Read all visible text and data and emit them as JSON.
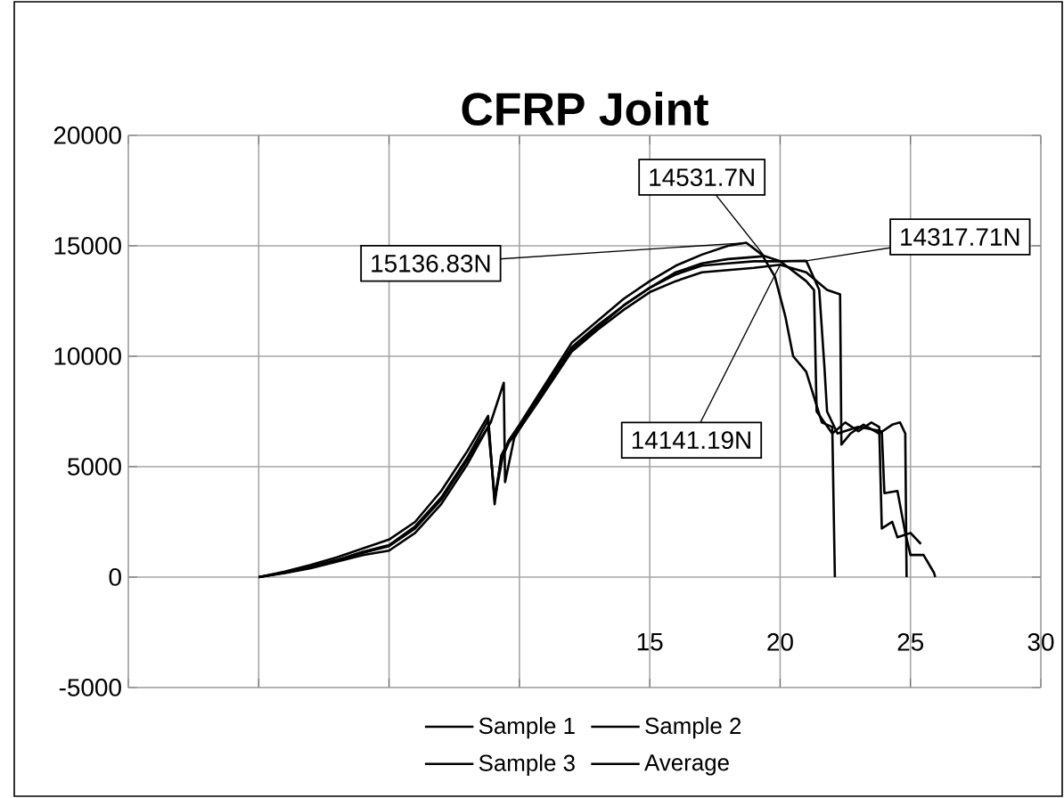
{
  "chart_data": {
    "type": "line",
    "title": "CFRP Joint",
    "xlim": [
      -5,
      30
    ],
    "ylim": [
      -5000,
      20000
    ],
    "xticks": [
      {
        "value": -5,
        "label": null
      },
      {
        "value": 0,
        "label": null
      },
      {
        "value": 5,
        "label": null
      },
      {
        "value": 10,
        "label": null
      },
      15,
      20,
      25,
      30
    ],
    "yticks": [
      -5000,
      0,
      5000,
      10000,
      15000,
      20000
    ],
    "grid": true,
    "legend": "bottom",
    "marker": "none",
    "line_style": "solid",
    "series": [
      {
        "name": "Sample 1",
        "color": "#000000",
        "x": [
          0,
          1,
          2,
          3,
          4,
          5,
          6,
          7,
          8,
          8.8,
          9.05,
          9.3,
          9.6,
          10,
          10.7,
          12,
          13,
          14,
          15,
          16,
          17,
          18,
          18.7,
          19.3,
          19.8,
          20.2,
          20.5,
          21.0,
          21.6,
          22.0,
          22.1
        ],
        "values": [
          0,
          250,
          550,
          900,
          1300,
          1700,
          2500,
          3900,
          5700,
          7300,
          3300,
          5500,
          6200,
          6900,
          8200,
          10600,
          11600,
          12600,
          13400,
          14100,
          14600,
          15000,
          15136.83,
          14600,
          13600,
          11800,
          10000,
          9300,
          7000,
          6800,
          0
        ]
      },
      {
        "name": "Sample 2",
        "color": "#000000",
        "x": [
          0,
          1,
          2,
          3,
          4,
          5,
          6,
          7,
          8,
          8.9,
          9.4,
          9.45,
          9.8,
          10,
          10.7,
          12,
          13,
          14,
          15,
          16,
          17,
          18,
          19.4,
          20,
          21,
          21.3,
          21.4,
          22,
          22.5,
          23,
          23.5,
          23.8,
          23.9,
          24.3,
          24.5,
          25,
          25.4
        ],
        "values": [
          0,
          200,
          450,
          750,
          1100,
          1400,
          2200,
          3500,
          5300,
          7000,
          8800,
          4300,
          6300,
          6700,
          8000,
          10300,
          11300,
          12300,
          13100,
          13800,
          14200,
          14400,
          14531.7,
          14300,
          13400,
          13000,
          7500,
          6500,
          7000,
          6600,
          7000,
          6800,
          2200,
          2500,
          1800,
          2000,
          1500
        ]
      },
      {
        "name": "Sample 3",
        "color": "#000000",
        "x": [
          0,
          1,
          2,
          3,
          4,
          5,
          6,
          7,
          8,
          8.8,
          9.05,
          9.3,
          9.6,
          10,
          10.7,
          12,
          13,
          14,
          15,
          16,
          17,
          18,
          19,
          20,
          21,
          21.8,
          22.3,
          22.35,
          22.7,
          23.2,
          23.8,
          24.3,
          24.6,
          24.8,
          24.85
        ],
        "values": [
          0,
          180,
          400,
          700,
          1000,
          1200,
          2000,
          3300,
          5100,
          6800,
          3600,
          5300,
          6100,
          6700,
          7900,
          10200,
          11200,
          12100,
          12900,
          13400,
          13800,
          13900,
          14000,
          14141.19,
          13800,
          13000,
          12800,
          6000,
          6500,
          6900,
          6500,
          6900,
          7000,
          6500,
          0
        ]
      },
      {
        "name": "Average",
        "color": "#000000",
        "x": [
          0,
          1,
          2,
          3,
          4,
          5,
          6,
          7,
          8,
          8.8,
          9.05,
          9.35,
          9.6,
          10,
          10.7,
          12,
          13,
          14,
          15,
          16,
          17,
          18,
          19,
          20,
          21,
          21.5,
          21.7,
          21.8,
          22.2,
          23,
          23.9,
          24.0,
          24.5,
          24.8,
          25.0,
          25.5,
          25.9,
          25.95
        ],
        "values": [
          0,
          210,
          470,
          780,
          1150,
          1450,
          2300,
          3600,
          5400,
          7100,
          3500,
          5400,
          6200,
          6800,
          8100,
          10400,
          11400,
          12300,
          13100,
          13700,
          14100,
          14200,
          14300,
          14300,
          14317.71,
          13000,
          9500,
          7500,
          6500,
          6800,
          6600,
          3800,
          3900,
          2000,
          1000,
          1000,
          200,
          0
        ]
      }
    ],
    "annotations": [
      {
        "text": "15136.83N",
        "x": 18.7,
        "y": 15136.83
      },
      {
        "text": "14531.7N",
        "x": 19.4,
        "y": 14531.7
      },
      {
        "text": "14317.71N",
        "x": 21.0,
        "y": 14317.71
      },
      {
        "text": "14141.19N",
        "x": 20.0,
        "y": 14141.19
      }
    ]
  }
}
